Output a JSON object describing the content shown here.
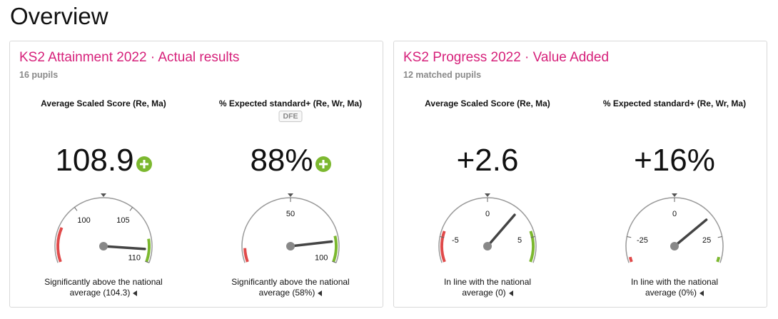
{
  "page_title": "Overview",
  "cards": [
    {
      "title": "KS2 Attainment 2022 · Actual results",
      "subtitle": "16 pupils",
      "panels": [
        {
          "label": "Average Scaled Score (Re, Ma)",
          "badge": "",
          "value": "108.9",
          "plus": true,
          "gauge": {
            "min": 95,
            "max": 110,
            "value": 108.9,
            "ticks": [
              "100",
              "105",
              "110"
            ],
            "tick_values": [
              100,
              105,
              110
            ],
            "red_band": [
              95,
              98
            ],
            "green_band": [
              108,
              110
            ]
          },
          "status_line1": "Significantly above the national",
          "status_line2": "average (104.3)"
        },
        {
          "label": "% Expected standard+ (Re, Wr, Ma)",
          "badge": "DFE",
          "value": "88%",
          "plus": true,
          "gauge": {
            "min": 0,
            "max": 100,
            "value": 88,
            "ticks": [
              "50",
              "100"
            ],
            "tick_values": [
              50,
              100
            ],
            "red_band": [
              0,
              8
            ],
            "green_band": [
              85,
              100
            ]
          },
          "status_line1": "Significantly above the national",
          "status_line2": "average (58%)"
        }
      ]
    },
    {
      "title": "KS2 Progress 2022 · Value Added",
      "subtitle": "12 matched pupils",
      "panels": [
        {
          "label": "Average Scaled Score (Re, Ma)",
          "badge": "",
          "value": "+2.6",
          "plus": false,
          "gauge": {
            "min": -7,
            "max": 7,
            "value": 2.6,
            "ticks": [
              "-5",
              "0",
              "5"
            ],
            "tick_values": [
              -5,
              0,
              5
            ],
            "red_band": [
              -7,
              -4.5
            ],
            "green_band": [
              4.5,
              7
            ]
          },
          "status_line1": "In line with the national",
          "status_line2": "average (0)"
        },
        {
          "label": "% Expected standard+ (Re, Wr, Ma)",
          "badge": "",
          "value": "+16%",
          "plus": false,
          "gauge": {
            "min": -35,
            "max": 35,
            "value": 16,
            "ticks": [
              "-25",
              "0",
              "25"
            ],
            "tick_values": [
              -25,
              0,
              25
            ],
            "red_band": [
              -35,
              -33
            ],
            "green_band": [
              33,
              35
            ]
          },
          "status_line1": "In line with the national",
          "status_line2": "average (0%)"
        }
      ]
    }
  ],
  "colors": {
    "accent": "#d6207a",
    "positive": "#7cb82f",
    "negative": "#e04a4a",
    "gauge_arc": "#999999",
    "needle": "#444444"
  }
}
